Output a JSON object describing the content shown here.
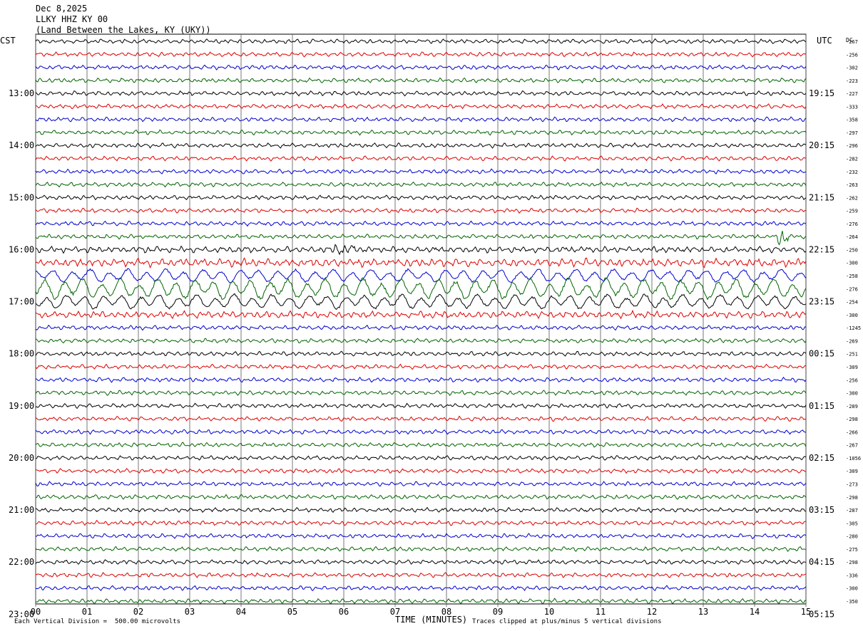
{
  "header": {
    "date": "Dec 8,2025",
    "station": "LLKY HHZ KY 00",
    "location": "(Land Between the Lakes, KY (UKY))"
  },
  "left_tz": "CST",
  "right_tz": "UTC",
  "dc_label": "DC",
  "chart_data": {
    "type": "line",
    "title": "LLKY HHZ KY 00",
    "xlabel": "TIME (MINUTES)",
    "xticks": [
      "00",
      "01",
      "02",
      "03",
      "04",
      "05",
      "06",
      "07",
      "08",
      "09",
      "10",
      "11",
      "12",
      "13",
      "14",
      "15"
    ],
    "xlim": [
      0,
      15
    ],
    "trace_colors": [
      "#000000",
      "#dd0000",
      "#0000cc",
      "#006400"
    ],
    "left_hour_labels": [
      "13:00",
      "14:00",
      "15:00",
      "16:00",
      "17:00",
      "18:00",
      "19:00",
      "20:00",
      "21:00",
      "22:00",
      "23:00"
    ],
    "right_hour_labels": [
      "19:15",
      "20:15",
      "21:15",
      "22:15",
      "23:15",
      "00:15",
      "01:15",
      "02:15",
      "03:15",
      "04:15",
      "05:15"
    ],
    "dc_offsets": [
      "-267",
      "-256",
      "-302",
      "-223",
      "-227",
      "-333",
      "-358",
      "-297",
      "-296",
      "-282",
      "-232",
      "-263",
      "-262",
      "-259",
      "-276",
      "-264",
      "-250",
      "-300",
      "-258",
      "-276",
      "-254",
      "-300",
      "-1245",
      "-269",
      "-251",
      "-309",
      "-256",
      "-300",
      "-289",
      "-298",
      "-266",
      "-267",
      "-1056",
      "-309",
      "-273",
      "-298",
      "-287",
      "-305",
      "-280",
      "-275",
      "-298",
      "-336",
      "-300",
      "-350"
    ]
  },
  "footer": {
    "scale_note": "Each Vertical Division =  500.00 microvolts",
    "clip_note": "Traces clipped at plus/minus 5 vertical divisions"
  }
}
